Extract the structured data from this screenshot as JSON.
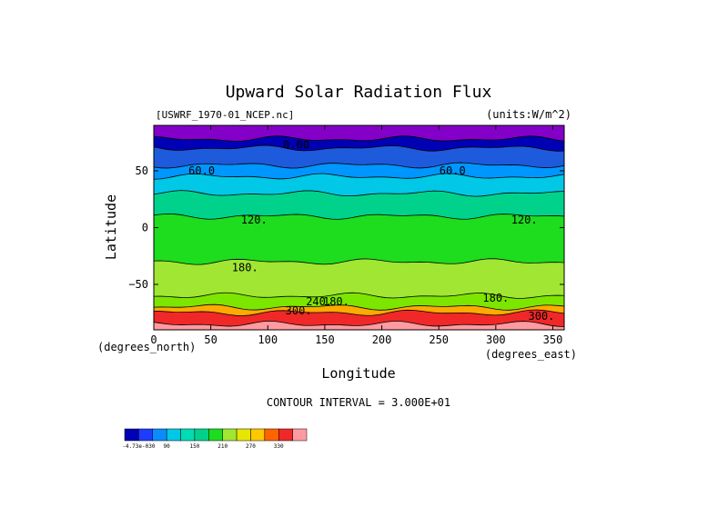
{
  "chart_data": {
    "type": "heatmap",
    "title": "Upward Solar Radiation Flux",
    "dataset_label": "[USWRF_1970-01_NCEP.nc]",
    "units_label": "(units:W/m^2)",
    "xlabel": "Longitude",
    "ylabel": "Latitude",
    "x_unit_label": "(degrees_east)",
    "y_unit_label": "(degrees_north)",
    "xlim": [
      0,
      360
    ],
    "ylim": [
      -90,
      90
    ],
    "x_ticks": [
      0,
      50,
      100,
      150,
      200,
      250,
      300,
      350
    ],
    "y_ticks": [
      50,
      0,
      -50
    ],
    "contour_interval_text": "CONTOUR INTERVAL = 3.000E+01",
    "contour_labels": [
      {
        "text": "0.00",
        "lon": 125,
        "lat": 73
      },
      {
        "text": "60.0",
        "lon": 42,
        "lat": 50
      },
      {
        "text": "60.0",
        "lon": 262,
        "lat": 50
      },
      {
        "text": "120.",
        "lon": 88,
        "lat": 7
      },
      {
        "text": "120.",
        "lon": 325,
        "lat": 7
      },
      {
        "text": "180.",
        "lon": 80,
        "lat": -35
      },
      {
        "text": "180.",
        "lon": 300,
        "lat": -62
      },
      {
        "text": "240.",
        "lon": 145,
        "lat": -65
      },
      {
        "text": "180.",
        "lon": 160,
        "lat": -65
      },
      {
        "text": "300.",
        "lon": 127,
        "lat": -73
      },
      {
        "text": "300.",
        "lon": 340,
        "lat": -78
      }
    ],
    "latitude_bands": [
      {
        "from": 90,
        "to": 78,
        "level": "0",
        "color": "#8400c8"
      },
      {
        "from": 78,
        "to": 70,
        "level": "0-30",
        "color": "#0000b4"
      },
      {
        "from": 70,
        "to": 55,
        "level": "30-60",
        "color": "#1e5adc"
      },
      {
        "from": 55,
        "to": 45,
        "level": "60-90",
        "color": "#0096ff"
      },
      {
        "from": 45,
        "to": 30,
        "level": "90-120",
        "color": "#00c8e6"
      },
      {
        "from": 30,
        "to": 10,
        "level": "120-150",
        "color": "#00d28c"
      },
      {
        "from": 10,
        "to": -30,
        "level": "150-180",
        "color": "#1edc1e"
      },
      {
        "from": -30,
        "to": -60,
        "level": "180-210",
        "color": "#a0e632"
      },
      {
        "from": -60,
        "to": -70,
        "level": "210-240",
        "color": "#7ce600"
      },
      {
        "from": -70,
        "to": -75,
        "level": "270-300",
        "color": "#ffaa00"
      },
      {
        "from": -75,
        "to": -85,
        "level": "300-330",
        "color": "#f02828"
      },
      {
        "from": -85,
        "to": -90,
        "level": ">330",
        "color": "#ff9ba0"
      }
    ],
    "colorbar": {
      "colors": [
        "#0000b4",
        "#1e3cff",
        "#0a8cff",
        "#00c8e6",
        "#00dcb4",
        "#00d28c",
        "#1edc1e",
        "#a0e632",
        "#e6e600",
        "#ffc800",
        "#ff6400",
        "#f02828",
        "#ff9ba0"
      ],
      "tick_labels": [
        "-4.73e-030",
        "90",
        "150",
        "210",
        "270",
        "330"
      ]
    },
    "grid": false,
    "legend": "colorbar bottom-left"
  }
}
